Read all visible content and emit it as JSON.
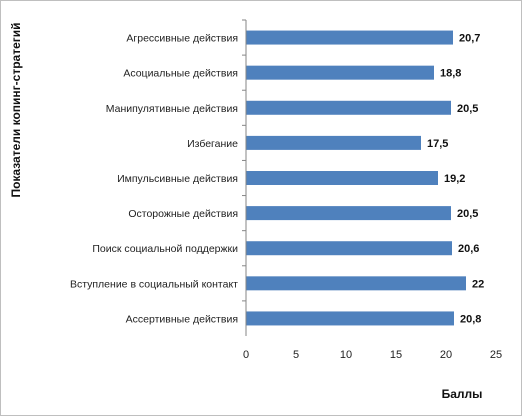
{
  "chart_data": {
    "type": "bar",
    "orientation": "horizontal",
    "categories": [
      "Агрессивные действия",
      "Асоциальные действия",
      "Манипулятивные действия",
      "Избегание",
      "Импульсивные действия",
      "Осторожные действия",
      "Поиск социальной поддержки",
      "Вступление в социальный контакт",
      "Ассертивные действия"
    ],
    "values": [
      20.7,
      18.8,
      20.5,
      17.5,
      19.2,
      20.5,
      20.6,
      22,
      20.8
    ],
    "value_labels": [
      "20,7",
      "18,8",
      "20,5",
      "17,5",
      "19,2",
      "20,5",
      "20,6",
      "22",
      "20,8"
    ],
    "xlabel": "Баллы",
    "ylabel": "Показатели копинг-стратегий",
    "xlim": [
      0,
      25
    ],
    "xticks": [
      0,
      5,
      10,
      15,
      20,
      25
    ],
    "grid": false,
    "legend": "none",
    "bar_color": "#4f81bd"
  }
}
